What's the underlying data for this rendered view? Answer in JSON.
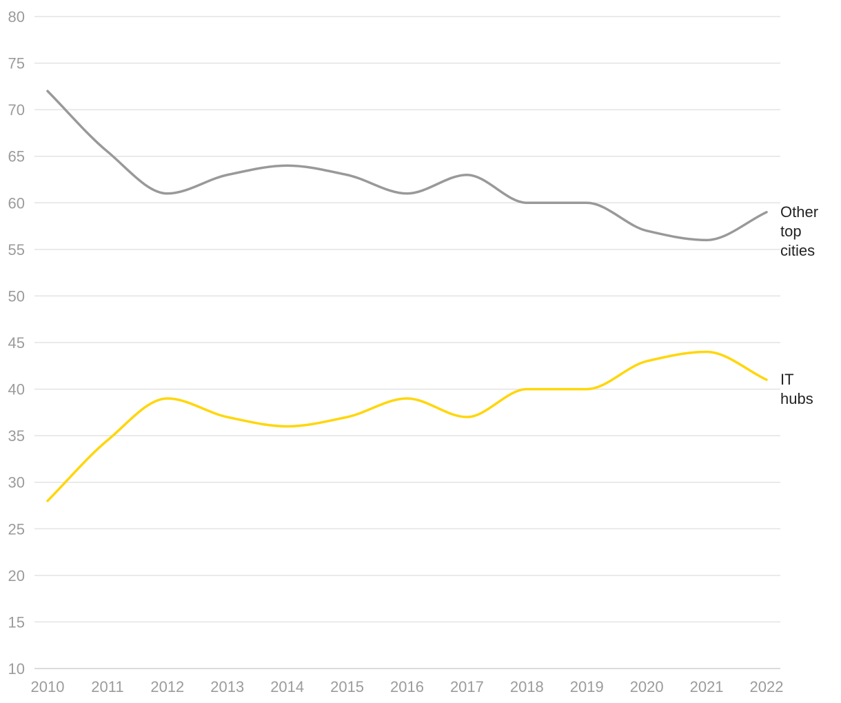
{
  "chart_data": {
    "type": "line",
    "title": "",
    "xlabel": "",
    "ylabel": "",
    "x": [
      2010,
      2011,
      2012,
      2013,
      2014,
      2015,
      2016,
      2017,
      2018,
      2019,
      2020,
      2021,
      2022
    ],
    "x_tick_labels": [
      "2010",
      "2011",
      "2012",
      "2013",
      "2014",
      "2015",
      "2016",
      "2017",
      "2018",
      "2019",
      "2020",
      "2021",
      "2022"
    ],
    "y_ticks": [
      10,
      15,
      20,
      25,
      30,
      35,
      40,
      45,
      50,
      55,
      60,
      65,
      70,
      75,
      80
    ],
    "y_tick_labels": [
      "10",
      "15",
      "20",
      "25",
      "30",
      "35",
      "40",
      "45",
      "50",
      "55",
      "60",
      "65",
      "70",
      "75",
      "80"
    ],
    "ylim": [
      10,
      80
    ],
    "grid": true,
    "legend": "direct labels at line ends",
    "series": [
      {
        "name": "Other top cities",
        "label_lines": [
          "Other",
          "top",
          "cities"
        ],
        "color": "#999999",
        "values": [
          72,
          65.5,
          61,
          63,
          64,
          63,
          61,
          63,
          60,
          60,
          57,
          56,
          59
        ]
      },
      {
        "name": "IT hubs",
        "label_lines": [
          "IT",
          "hubs"
        ],
        "color": "#ffd60a",
        "values": [
          28,
          34.5,
          39,
          37,
          36,
          37,
          39,
          37,
          40,
          40,
          43,
          44,
          41
        ]
      }
    ]
  }
}
